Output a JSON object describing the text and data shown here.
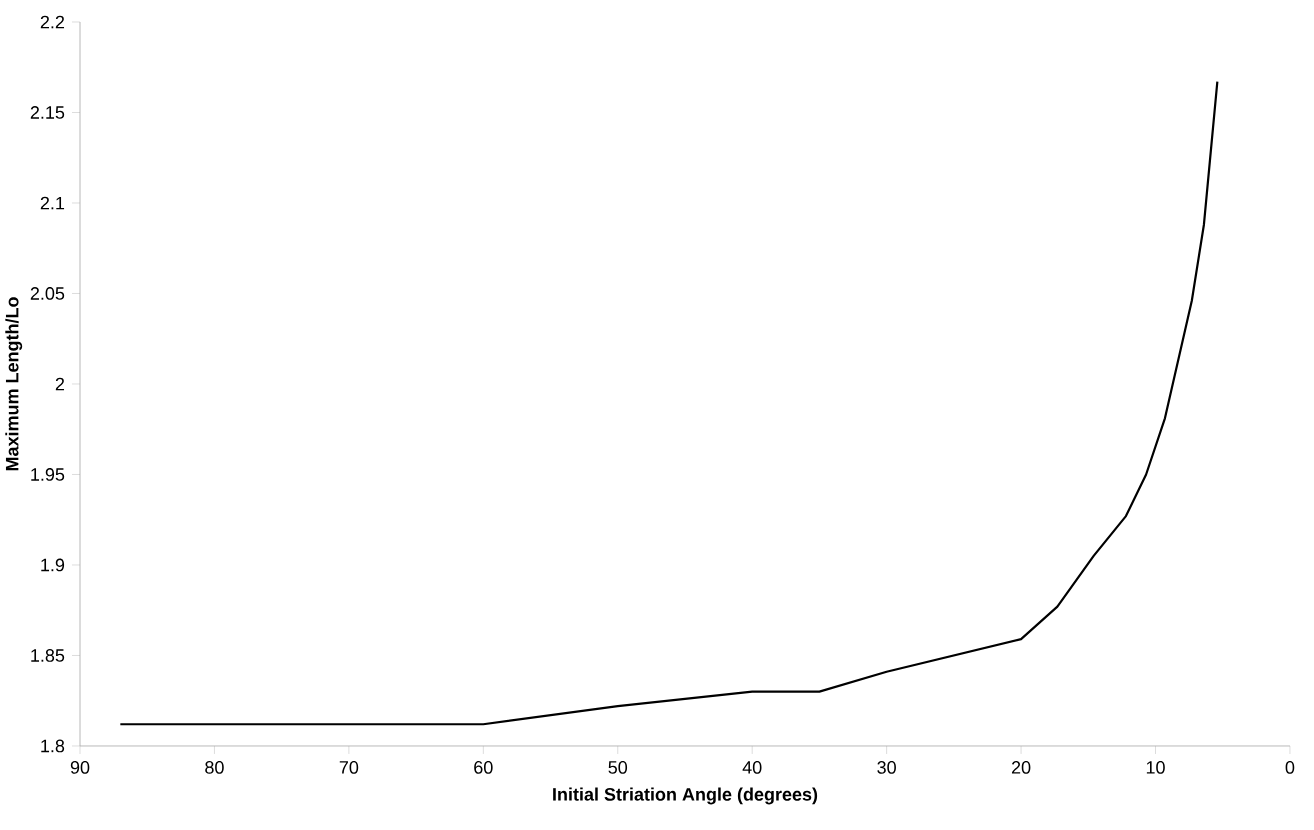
{
  "chart_data": {
    "type": "line",
    "xlabel": "Initial Striation Angle (degrees)",
    "ylabel": "Maximum Length/Lo",
    "x": [
      87,
      60,
      50,
      40,
      35,
      30,
      20,
      17.3,
      14.6,
      12.2,
      10.7,
      9.3,
      7.3,
      6.4,
      5.4
    ],
    "series": [
      {
        "color": "#000000",
        "values": [
          1.812,
          1.812,
          1.822,
          1.83,
          1.83,
          1.841,
          1.859,
          1.877,
          1.905,
          1.927,
          1.95,
          1.981,
          2.046,
          2.088,
          2.167
        ]
      }
    ],
    "xlim": [
      90,
      0
    ],
    "ylim": [
      1.8,
      2.2
    ],
    "xticks": [
      90,
      80,
      70,
      60,
      50,
      40,
      30,
      20,
      10,
      0
    ],
    "yticks": [
      1.8,
      1.85,
      1.9,
      1.95,
      2,
      2.05,
      2.1,
      2.15,
      2.2
    ],
    "grid": false,
    "marker": "none",
    "line_style": "solid"
  }
}
